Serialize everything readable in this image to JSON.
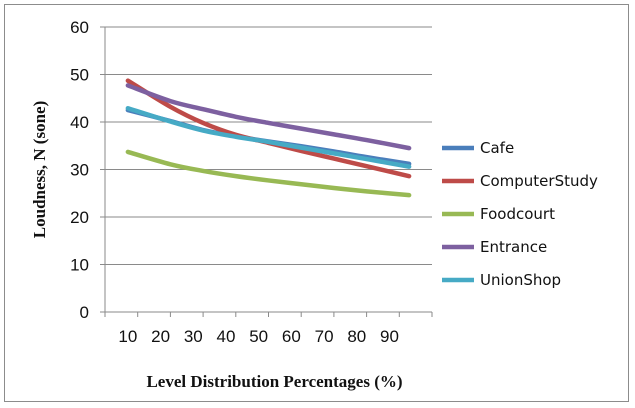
{
  "chart_data": {
    "type": "line",
    "x": [
      7,
      20,
      30,
      40,
      50,
      60,
      70,
      80,
      93
    ],
    "xticks": [
      "10",
      "20",
      "30",
      "40",
      "50",
      "60",
      "70",
      "80",
      "90"
    ],
    "yticks": [
      "0",
      "10",
      "20",
      "30",
      "40",
      "50",
      "60"
    ],
    "xlabel": "Level Distribution Percentages (%)",
    "ylabel": "Loudness, N (sone)",
    "ylim": [
      0,
      60
    ],
    "grid": "horizontal",
    "legend_position": "right",
    "series": [
      {
        "name": "Cafe",
        "color": "#4a7ebb",
        "values": [
          42.5,
          40.2,
          38.3,
          37.0,
          35.9,
          34.9,
          33.8,
          32.6,
          31.2
        ]
      },
      {
        "name": "ComputerStudy",
        "color": "#be4b48",
        "values": [
          48.7,
          43.2,
          39.8,
          37.3,
          35.6,
          33.9,
          32.3,
          30.7,
          28.6
        ]
      },
      {
        "name": "Foodcourt",
        "color": "#98b954",
        "values": [
          33.7,
          31.1,
          29.7,
          28.6,
          27.7,
          26.9,
          26.1,
          25.4,
          24.6
        ]
      },
      {
        "name": "Entrance",
        "color": "#7d60a0",
        "values": [
          47.7,
          44.4,
          42.7,
          41.1,
          39.8,
          38.6,
          37.4,
          36.2,
          34.5
        ]
      },
      {
        "name": "UnionShop",
        "color": "#46aac5",
        "values": [
          42.9,
          40.1,
          38.2,
          36.9,
          35.8,
          34.6,
          33.4,
          32.2,
          30.6
        ]
      }
    ]
  }
}
